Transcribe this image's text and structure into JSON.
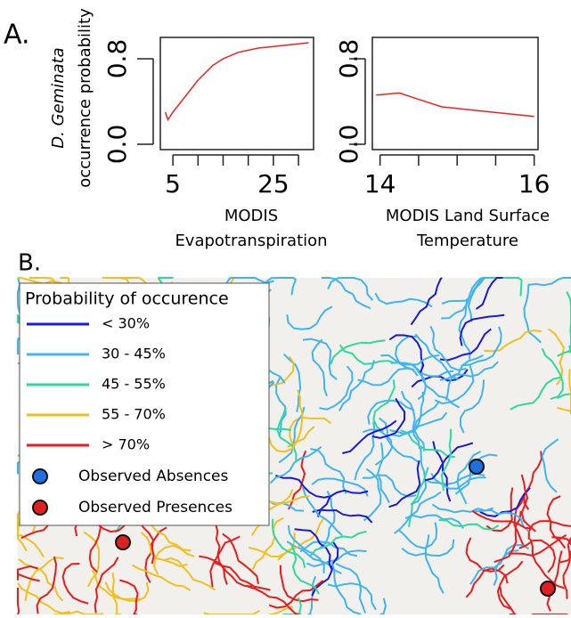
{
  "panel_labels": [
    "A.",
    "B."
  ],
  "chart_data": [
    {
      "type": "line",
      "ylabel": [
        "D. Geminata",
        "occurrence probability"
      ],
      "xlabel": [
        "MODIS",
        "Evapotranspiration"
      ],
      "x": [
        3.5,
        4,
        5,
        7,
        10,
        13,
        15,
        18,
        22,
        26,
        30,
        32
      ],
      "series": [
        {
          "color": "#ee2222",
          "values": [
            0.3,
            0.23,
            0.3,
            0.42,
            0.6,
            0.74,
            0.8,
            0.86,
            0.9,
            0.92,
            0.94,
            0.95
          ]
        }
      ],
      "xlim": [
        2.5,
        33
      ],
      "ylim": [
        -0.05,
        1.0
      ],
      "xticks": [
        {
          "value": 5,
          "label": "5"
        },
        {
          "value": 10,
          "label": null
        },
        {
          "value": 15,
          "label": null
        },
        {
          "value": 20,
          "label": null
        },
        {
          "value": 25,
          "label": "25"
        },
        {
          "value": 30,
          "label": null
        }
      ],
      "yticks": [
        {
          "value": 0,
          "label": "0.0"
        },
        {
          "value": 0.8,
          "label": "0.8"
        }
      ]
    },
    {
      "type": "line",
      "xlabel": [
        "MODIS Land Surface",
        "Temperature"
      ],
      "x": [
        13.95,
        14.1,
        14.25,
        14.5,
        14.8,
        15.2,
        15.6,
        16
      ],
      "series": [
        {
          "color": "#ee2222",
          "values": [
            0.46,
            0.47,
            0.48,
            0.42,
            0.35,
            0.32,
            0.29,
            0.26
          ]
        }
      ],
      "xlim": [
        13.9,
        16.05
      ],
      "ylim": [
        -0.05,
        1.0
      ],
      "xticks": [
        {
          "value": 14,
          "label": "14"
        },
        {
          "value": 14.5,
          "label": null
        },
        {
          "value": 15,
          "label": null
        },
        {
          "value": 15.5,
          "label": null
        },
        {
          "value": 16,
          "label": "16"
        }
      ],
      "yticks": [
        {
          "value": 0,
          "label": "0.0"
        },
        {
          "value": 0.8,
          "label": "0.8"
        }
      ]
    }
  ],
  "map": {
    "legend_title": "Probability of occurence",
    "lines": [
      {
        "label": "< 30%",
        "color": "#1a1ad8"
      },
      {
        "label": "30 - 45%",
        "color": "#3fb4f0"
      },
      {
        "label": "45 - 55%",
        "color": "#2ed8a0"
      },
      {
        "label": "55 - 70%",
        "color": "#f0c020"
      },
      {
        "label": "> 70%",
        "color": "#e81c1c"
      }
    ],
    "points": [
      {
        "label": "Observed Absences",
        "color": "#1e6fe0"
      },
      {
        "label": "Observed Presences",
        "color": "#e02020"
      }
    ]
  }
}
